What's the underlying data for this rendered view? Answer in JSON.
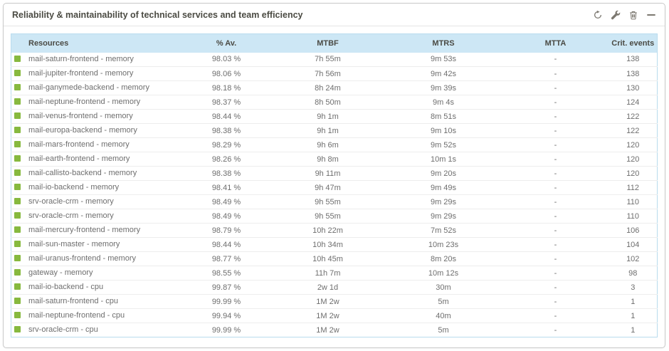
{
  "widget": {
    "title": "Reliability & maintainability of technical services and team efficiency",
    "toolbar_icons": [
      "refresh",
      "wrench",
      "trash",
      "minimize"
    ]
  },
  "colors": {
    "header_bg": "#cde7f5",
    "table_border": "#b9dcee",
    "row_divider": "#ededed",
    "status_ok": "#87b93f",
    "title_text": "#4b4b43",
    "header_text": "#4a4a44",
    "row_text": "#6e6e6e",
    "icon_color": "#7c7870",
    "card_border": "#c9c9c9"
  },
  "table": {
    "columns": [
      "Resources",
      "% Av.",
      "MTBF",
      "MTRS",
      "MTTA",
      "Crit. events"
    ],
    "rows": [
      {
        "status": "ok",
        "resource": "mail-saturn-frontend - memory",
        "availability": "98.03 %",
        "mtbf": "7h 55m",
        "mtrs": "9m 53s",
        "mtta": "-",
        "crit_events": 138
      },
      {
        "status": "ok",
        "resource": "mail-jupiter-frontend - memory",
        "availability": "98.06 %",
        "mtbf": "7h 56m",
        "mtrs": "9m 42s",
        "mtta": "-",
        "crit_events": 138
      },
      {
        "status": "ok",
        "resource": "mail-ganymede-backend - memory",
        "availability": "98.18 %",
        "mtbf": "8h 24m",
        "mtrs": "9m 39s",
        "mtta": "-",
        "crit_events": 130
      },
      {
        "status": "ok",
        "resource": "mail-neptune-frontend - memory",
        "availability": "98.37 %",
        "mtbf": "8h 50m",
        "mtrs": "9m 4s",
        "mtta": "-",
        "crit_events": 124
      },
      {
        "status": "ok",
        "resource": "mail-venus-frontend - memory",
        "availability": "98.44 %",
        "mtbf": "9h 1m",
        "mtrs": "8m 51s",
        "mtta": "-",
        "crit_events": 122
      },
      {
        "status": "ok",
        "resource": "mail-europa-backend - memory",
        "availability": "98.38 %",
        "mtbf": "9h 1m",
        "mtrs": "9m 10s",
        "mtta": "-",
        "crit_events": 122
      },
      {
        "status": "ok",
        "resource": "mail-mars-frontend - memory",
        "availability": "98.29 %",
        "mtbf": "9h 6m",
        "mtrs": "9m 52s",
        "mtta": "-",
        "crit_events": 120
      },
      {
        "status": "ok",
        "resource": "mail-earth-frontend - memory",
        "availability": "98.26 %",
        "mtbf": "9h 8m",
        "mtrs": "10m 1s",
        "mtta": "-",
        "crit_events": 120
      },
      {
        "status": "ok",
        "resource": "mail-callisto-backend - memory",
        "availability": "98.38 %",
        "mtbf": "9h 11m",
        "mtrs": "9m 20s",
        "mtta": "-",
        "crit_events": 120
      },
      {
        "status": "ok",
        "resource": "mail-io-backend - memory",
        "availability": "98.41 %",
        "mtbf": "9h 47m",
        "mtrs": "9m 49s",
        "mtta": "-",
        "crit_events": 112
      },
      {
        "status": "ok",
        "resource": "srv-oracle-crm - memory",
        "availability": "98.49 %",
        "mtbf": "9h 55m",
        "mtrs": "9m 29s",
        "mtta": "-",
        "crit_events": 110
      },
      {
        "status": "ok",
        "resource": "srv-oracle-crm - memory",
        "availability": "98.49 %",
        "mtbf": "9h 55m",
        "mtrs": "9m 29s",
        "mtta": "-",
        "crit_events": 110
      },
      {
        "status": "ok",
        "resource": "mail-mercury-frontend - memory",
        "availability": "98.79 %",
        "mtbf": "10h 22m",
        "mtrs": "7m 52s",
        "mtta": "-",
        "crit_events": 106
      },
      {
        "status": "ok",
        "resource": "mail-sun-master - memory",
        "availability": "98.44 %",
        "mtbf": "10h 34m",
        "mtrs": "10m 23s",
        "mtta": "-",
        "crit_events": 104
      },
      {
        "status": "ok",
        "resource": "mail-uranus-frontend - memory",
        "availability": "98.77 %",
        "mtbf": "10h 45m",
        "mtrs": "8m 20s",
        "mtta": "-",
        "crit_events": 102
      },
      {
        "status": "ok",
        "resource": "gateway - memory",
        "availability": "98.55 %",
        "mtbf": "11h 7m",
        "mtrs": "10m 12s",
        "mtta": "-",
        "crit_events": 98
      },
      {
        "status": "ok",
        "resource": "mail-io-backend - cpu",
        "availability": "99.87 %",
        "mtbf": "2w 1d",
        "mtrs": "30m",
        "mtta": "-",
        "crit_events": 3
      },
      {
        "status": "ok",
        "resource": "mail-saturn-frontend - cpu",
        "availability": "99.99 %",
        "mtbf": "1M 2w",
        "mtrs": "5m",
        "mtta": "-",
        "crit_events": 1
      },
      {
        "status": "ok",
        "resource": "mail-neptune-frontend - cpu",
        "availability": "99.94 %",
        "mtbf": "1M 2w",
        "mtrs": "40m",
        "mtta": "-",
        "crit_events": 1
      },
      {
        "status": "ok",
        "resource": "srv-oracle-crm - cpu",
        "availability": "99.99 %",
        "mtbf": "1M 2w",
        "mtrs": "5m",
        "mtta": "-",
        "crit_events": 1
      }
    ]
  }
}
